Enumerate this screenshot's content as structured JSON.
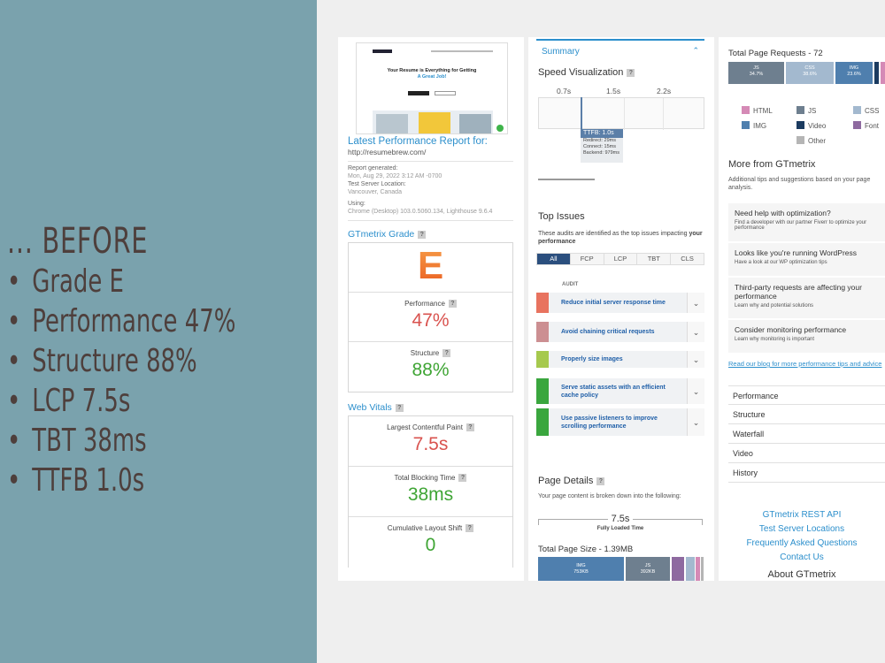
{
  "slide": {
    "heading": "... BEFORE",
    "bullets": [
      "Grade E",
      "Performance 47%",
      "Structure 88%",
      "LCP 7.5s",
      "TBT 38ms",
      "TTFB 1.0s"
    ]
  },
  "report": {
    "site_headline_1": "Your Resume is Everything for Getting",
    "site_headline_2": "A Great Job!",
    "title": "Latest Performance Report for:",
    "url": "http://resumebrew.com/",
    "generated_label": "Report generated:",
    "generated_value": "Mon, Aug 29, 2022 3:12 AM -0700",
    "location_label": "Test Server Location:",
    "location_value": "Vancouver, Canada",
    "using_label": "Using:",
    "using_value": "Chrome (Desktop) 103.0.5060.134, Lighthouse 9.6.4"
  },
  "grade": {
    "title": "GTmetrix Grade",
    "letter": "E",
    "performance_label": "Performance",
    "performance_value": "47%",
    "structure_label": "Structure",
    "structure_value": "88%"
  },
  "vitals": {
    "title": "Web Vitals",
    "lcp_label": "Largest Contentful Paint",
    "lcp_value": "7.5s",
    "tbt_label": "Total Blocking Time",
    "tbt_value": "38ms",
    "cls_label": "Cumulative Layout Shift",
    "cls_value": "0"
  },
  "summary": {
    "tab": "Summary",
    "speed_title": "Speed Visualization",
    "ticks": [
      "0.7s",
      "1.5s",
      "2.2s"
    ],
    "ttfb": {
      "label": "TTFB: 1.0s",
      "redirect": "Redirect: 29ms",
      "connect": "Connect: 15ms",
      "backend": "Backend: 979ms"
    }
  },
  "issues": {
    "title": "Top Issues",
    "desc_1": "These audits are identified as the top issues impacting",
    "desc_2": "your performance",
    "tabs": [
      "All",
      "FCP",
      "LCP",
      "TBT",
      "CLS"
    ],
    "audit_header": "AUDIT",
    "audits": [
      {
        "text": "Reduce initial server response time",
        "color": "#e8735f"
      },
      {
        "text": "Avoid chaining critical requests",
        "color": "#cc8f92"
      },
      {
        "text": "Properly size images",
        "color": "#a6c94e"
      },
      {
        "text": "Serve static assets with an efficient cache policy",
        "color": "#3aa63e"
      },
      {
        "text": "Use passive listeners to improve scrolling performance",
        "color": "#3aa63e"
      }
    ]
  },
  "details": {
    "title": "Page Details",
    "desc": "Your page content is broken down into the following:",
    "loaded_value": "7.5s",
    "loaded_label": "Fully Loaded Time",
    "size_title": "Total Page Size - 1.39MB",
    "size_img": "IMG",
    "size_img_val": "753KB",
    "size_js": "JS",
    "size_js_val": "392KB"
  },
  "requests": {
    "title": "Total Page Requests - 72",
    "js": "JS",
    "js_val": "34.7%",
    "css": "CSS",
    "css_val": "38.6%",
    "img": "IMG",
    "img_val": "23.6%"
  },
  "legend": [
    {
      "label": "HTML",
      "color": "#d58ab6"
    },
    {
      "label": "JS",
      "color": "#6e7f8f"
    },
    {
      "label": "CSS",
      "color": "#a3b9cf"
    },
    {
      "label": "IMG",
      "color": "#4f7fae"
    },
    {
      "label": "Video",
      "color": "#1b3b60"
    },
    {
      "label": "Font",
      "color": "#8e6aa0"
    },
    {
      "label": "Other",
      "color": "#b5b5b5"
    }
  ],
  "more": {
    "title": "More from GTmetrix",
    "desc": "Additional tips and suggestions based on your page analysis.",
    "tips": [
      {
        "title": "Need help with optimization?",
        "sub": "Find a developer with our partner Fiverr to optimize your performance"
      },
      {
        "title": "Looks like you're running WordPress",
        "sub": "Have a look at our WP optimization tips"
      },
      {
        "title": "Third-party requests are affecting your performance",
        "sub": "Learn why and potential solutions"
      },
      {
        "title": "Consider monitoring performance",
        "sub": "Learn why monitoring is important"
      }
    ],
    "blog_link": "Read our blog for more performance tips and advice",
    "sections": [
      "Performance",
      "Structure",
      "Waterfall",
      "Video",
      "History"
    ]
  },
  "footer": {
    "links": [
      "GTmetrix REST API",
      "Test Server Locations",
      "Frequently Asked Questions",
      "Contact Us"
    ],
    "about": "About GTmetrix"
  }
}
